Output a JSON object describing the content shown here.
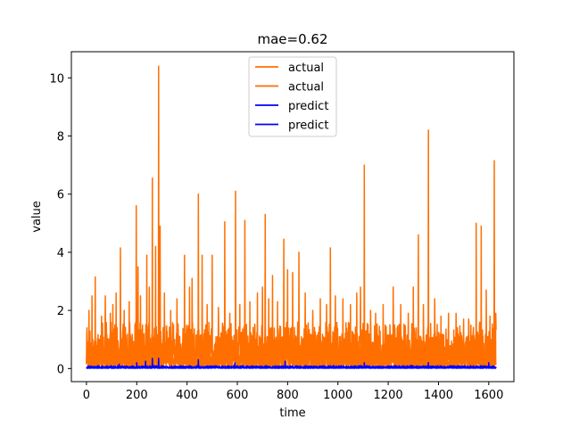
{
  "chart_data": {
    "type": "line",
    "title": "mae=0.62",
    "xlabel": "time",
    "ylabel": "value",
    "xlim": [
      -60,
      1700
    ],
    "ylim": [
      -0.45,
      10.9
    ],
    "xticks": [
      0,
      200,
      400,
      600,
      800,
      1000,
      1200,
      1400,
      1600
    ],
    "yticks": [
      0,
      2,
      4,
      6,
      8,
      10
    ],
    "grid": false,
    "legend_position": "top-center",
    "n_points": 1630,
    "series": [
      {
        "name": "actual",
        "color": "#ff6f00",
        "baseline_range": [
          0.1,
          1.6
        ],
        "spikes": [
          {
            "x": 2,
            "y": 1.4
          },
          {
            "x": 10,
            "y": 2.0
          },
          {
            "x": 22,
            "y": 2.5
          },
          {
            "x": 35,
            "y": 3.15
          },
          {
            "x": 60,
            "y": 1.8
          },
          {
            "x": 75,
            "y": 2.5
          },
          {
            "x": 95,
            "y": 1.9
          },
          {
            "x": 105,
            "y": 2.2
          },
          {
            "x": 118,
            "y": 2.6
          },
          {
            "x": 135,
            "y": 4.15
          },
          {
            "x": 150,
            "y": 2.0
          },
          {
            "x": 170,
            "y": 2.3
          },
          {
            "x": 198,
            "y": 5.6
          },
          {
            "x": 205,
            "y": 3.5
          },
          {
            "x": 215,
            "y": 2.5
          },
          {
            "x": 240,
            "y": 3.9
          },
          {
            "x": 250,
            "y": 2.8
          },
          {
            "x": 262,
            "y": 6.55
          },
          {
            "x": 275,
            "y": 4.2
          },
          {
            "x": 287,
            "y": 10.4
          },
          {
            "x": 293,
            "y": 4.9
          },
          {
            "x": 310,
            "y": 2.6
          },
          {
            "x": 335,
            "y": 2.0
          },
          {
            "x": 360,
            "y": 2.4
          },
          {
            "x": 390,
            "y": 3.9
          },
          {
            "x": 410,
            "y": 2.8
          },
          {
            "x": 420,
            "y": 3.1
          },
          {
            "x": 445,
            "y": 6.0
          },
          {
            "x": 460,
            "y": 3.9
          },
          {
            "x": 480,
            "y": 2.2
          },
          {
            "x": 500,
            "y": 3.9
          },
          {
            "x": 525,
            "y": 2.1
          },
          {
            "x": 550,
            "y": 5.05
          },
          {
            "x": 570,
            "y": 1.9
          },
          {
            "x": 593,
            "y": 6.1
          },
          {
            "x": 610,
            "y": 2.2
          },
          {
            "x": 630,
            "y": 5.1
          },
          {
            "x": 650,
            "y": 2.3
          },
          {
            "x": 680,
            "y": 2.6
          },
          {
            "x": 700,
            "y": 2.8
          },
          {
            "x": 711,
            "y": 5.3
          },
          {
            "x": 725,
            "y": 2.4
          },
          {
            "x": 740,
            "y": 3.2
          },
          {
            "x": 760,
            "y": 2.3
          },
          {
            "x": 785,
            "y": 4.45
          },
          {
            "x": 800,
            "y": 3.4
          },
          {
            "x": 820,
            "y": 3.3
          },
          {
            "x": 845,
            "y": 4.0
          },
          {
            "x": 870,
            "y": 2.6
          },
          {
            "x": 900,
            "y": 2.0
          },
          {
            "x": 930,
            "y": 2.4
          },
          {
            "x": 955,
            "y": 2.2
          },
          {
            "x": 970,
            "y": 4.15
          },
          {
            "x": 990,
            "y": 2.5
          },
          {
            "x": 1020,
            "y": 2.4
          },
          {
            "x": 1050,
            "y": 2.2
          },
          {
            "x": 1075,
            "y": 2.6
          },
          {
            "x": 1090,
            "y": 2.8
          },
          {
            "x": 1105,
            "y": 7.0
          },
          {
            "x": 1130,
            "y": 2.0
          },
          {
            "x": 1150,
            "y": 1.9
          },
          {
            "x": 1180,
            "y": 2.2
          },
          {
            "x": 1220,
            "y": 2.8
          },
          {
            "x": 1250,
            "y": 2.2
          },
          {
            "x": 1280,
            "y": 1.9
          },
          {
            "x": 1300,
            "y": 2.8
          },
          {
            "x": 1320,
            "y": 4.6
          },
          {
            "x": 1340,
            "y": 2.2
          },
          {
            "x": 1360,
            "y": 8.2
          },
          {
            "x": 1385,
            "y": 2.4
          },
          {
            "x": 1410,
            "y": 1.8
          },
          {
            "x": 1440,
            "y": 1.9
          },
          {
            "x": 1470,
            "y": 1.9
          },
          {
            "x": 1500,
            "y": 1.7
          },
          {
            "x": 1520,
            "y": 1.7
          },
          {
            "x": 1550,
            "y": 5.0
          },
          {
            "x": 1570,
            "y": 4.9
          },
          {
            "x": 1590,
            "y": 2.7
          },
          {
            "x": 1605,
            "y": 1.8
          },
          {
            "x": 1615,
            "y": 1.1
          },
          {
            "x": 1622,
            "y": 7.15
          },
          {
            "x": 1628,
            "y": 1.9
          }
        ]
      },
      {
        "name": "actual",
        "color": "#ff6f00",
        "baseline_range": [
          0.05,
          1.2
        ],
        "spikes": []
      },
      {
        "name": "predict",
        "color": "#0000ff",
        "baseline_range": [
          0.02,
          0.1
        ],
        "spikes": [
          {
            "x": 130,
            "y": 0.15
          },
          {
            "x": 200,
            "y": 0.2
          },
          {
            "x": 235,
            "y": 0.25
          },
          {
            "x": 262,
            "y": 0.35
          },
          {
            "x": 287,
            "y": 0.35
          },
          {
            "x": 445,
            "y": 0.3
          },
          {
            "x": 590,
            "y": 0.2
          },
          {
            "x": 790,
            "y": 0.25
          },
          {
            "x": 1105,
            "y": 0.2
          },
          {
            "x": 1360,
            "y": 0.2
          },
          {
            "x": 1600,
            "y": 0.2
          }
        ]
      },
      {
        "name": "predict",
        "color": "#0000ff",
        "baseline_range": [
          0.01,
          0.08
        ],
        "spikes": []
      }
    ]
  }
}
